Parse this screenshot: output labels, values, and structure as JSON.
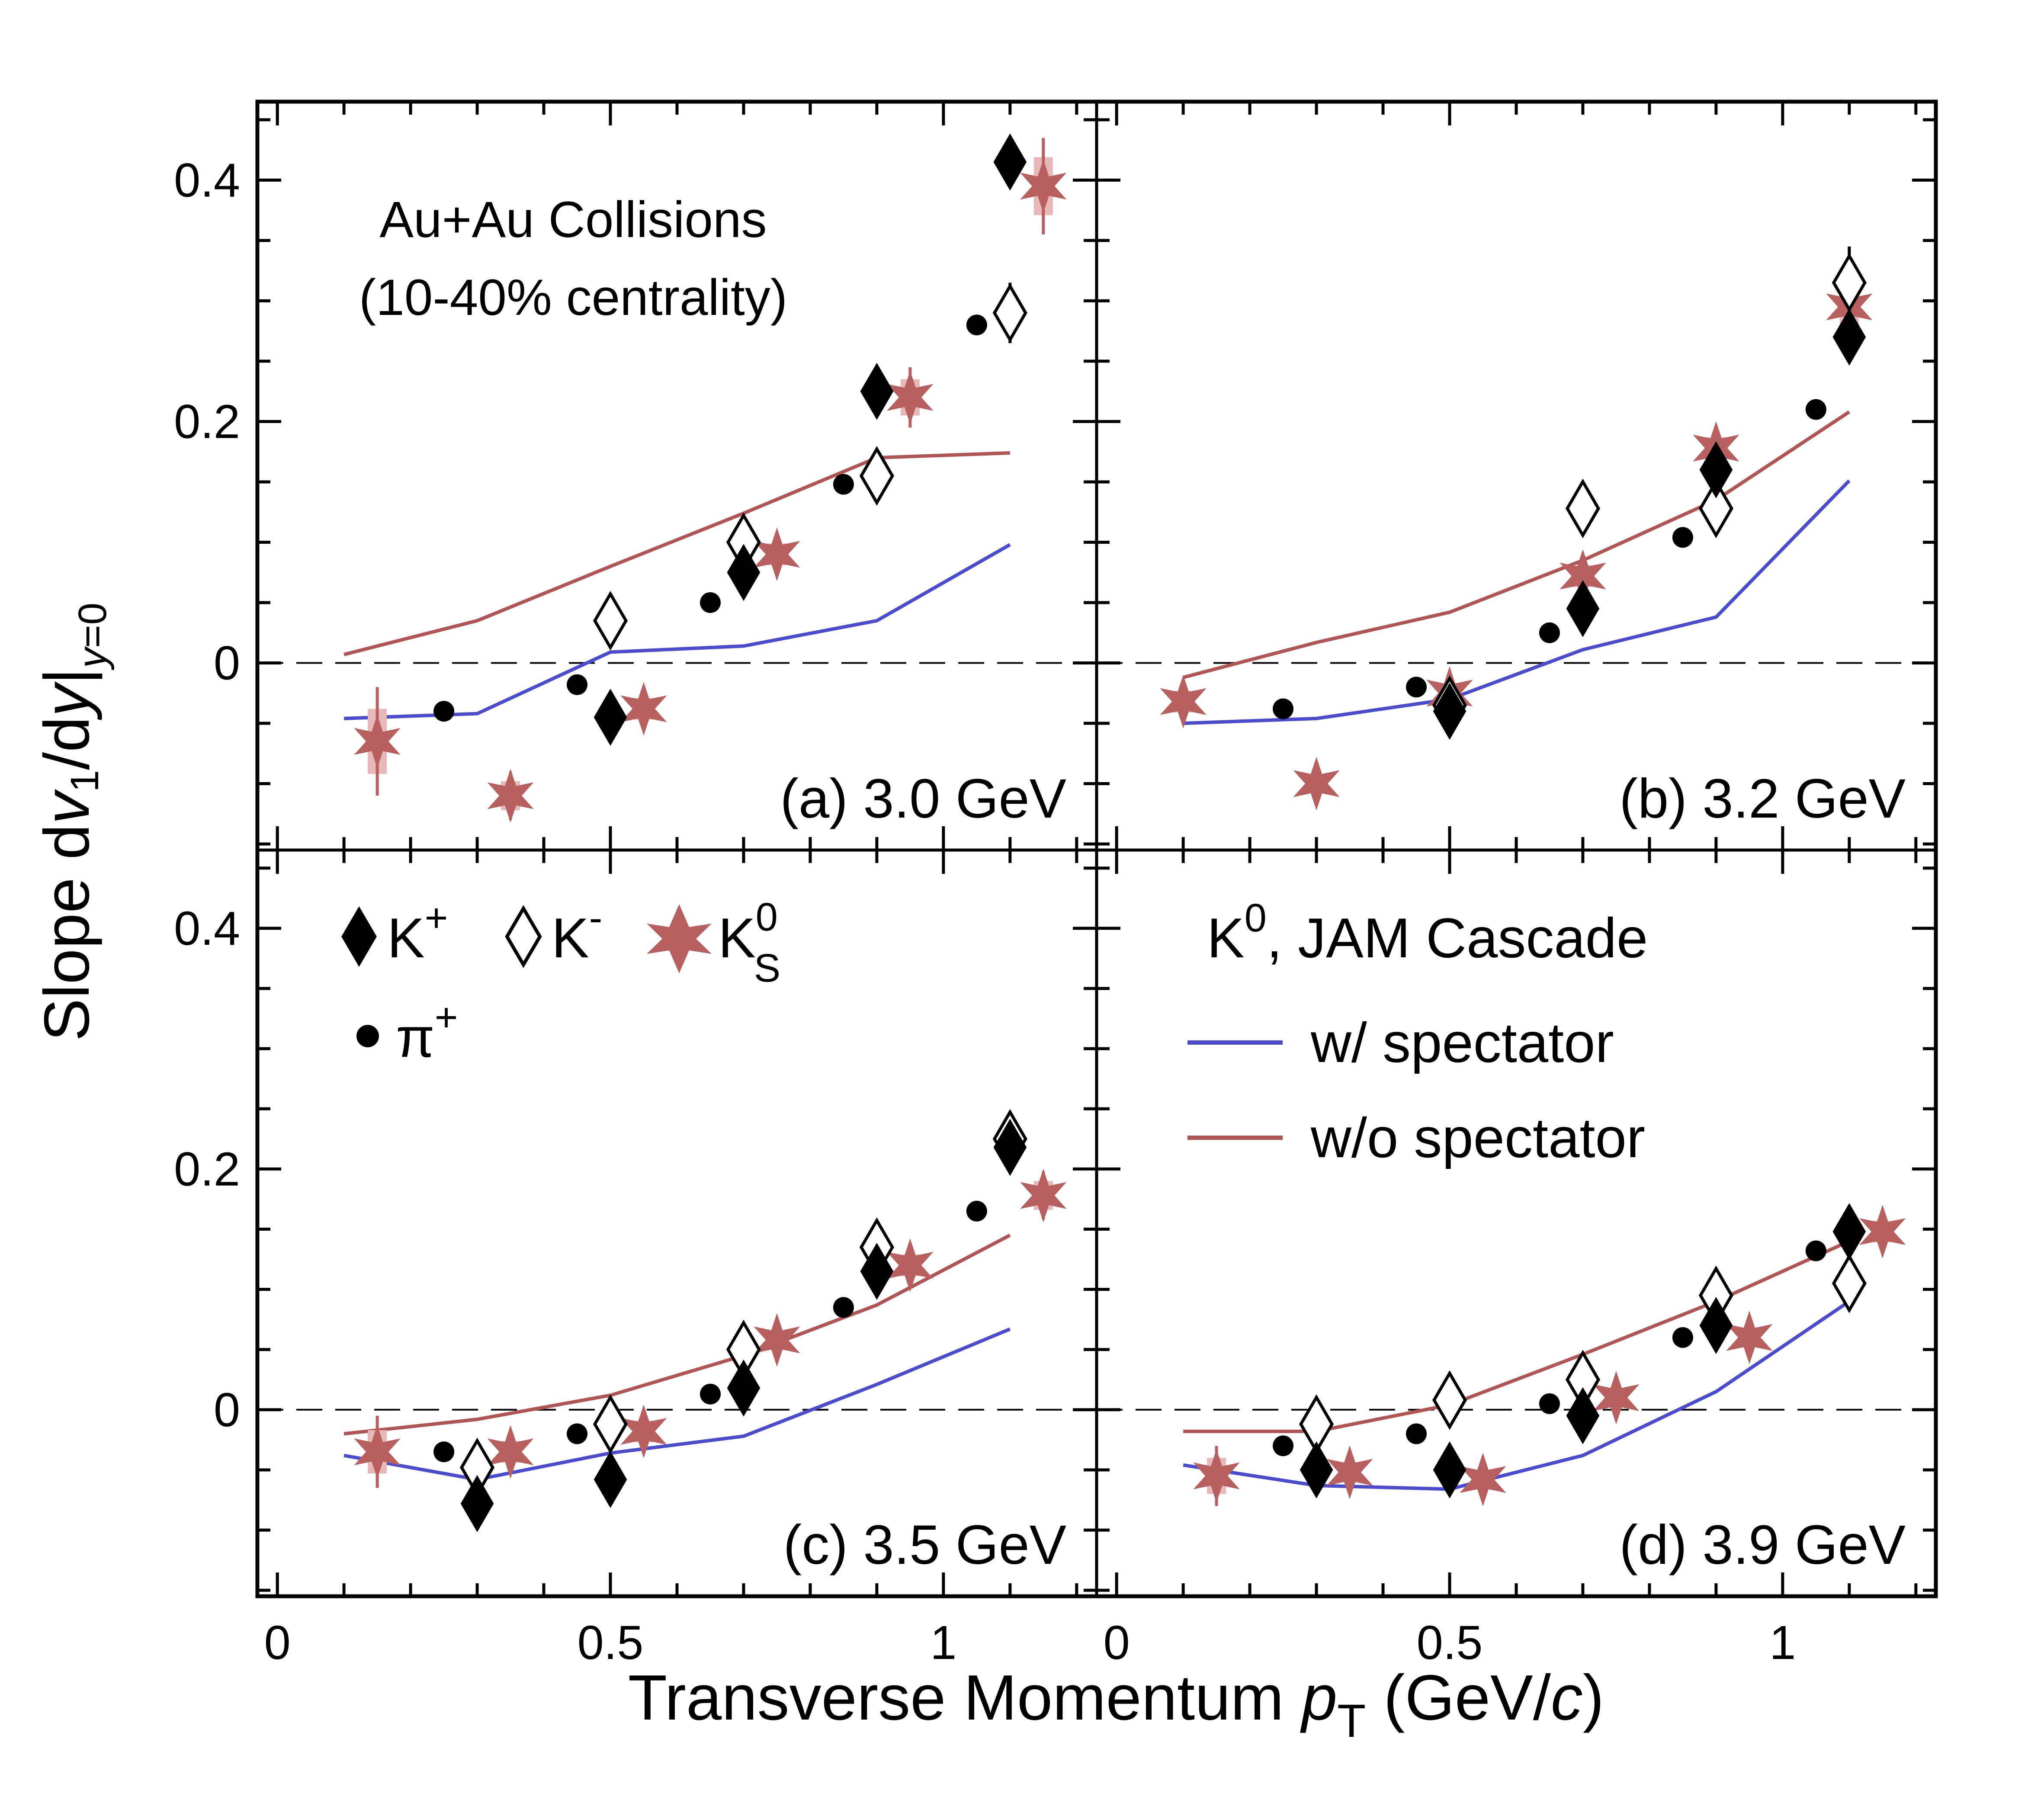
{
  "chart_data": {
    "type": "scatter",
    "ylabel": "Slope dv1/dy|y=0",
    "xlabel": "Transverse Momentum   pT (GeV/c)",
    "xlim": [
      -0.03,
      1.23
    ],
    "ylim": [
      -0.155,
      0.465
    ],
    "x_ticks": [
      {
        "value": 0,
        "label": "0"
      },
      {
        "value": 0.5,
        "label": "0.5"
      },
      {
        "value": 1,
        "label": "1"
      }
    ],
    "y_ticks": [
      {
        "value": 0,
        "label": "0"
      },
      {
        "value": 0.2,
        "label": "0.2"
      },
      {
        "value": 0.4,
        "label": "0.4"
      }
    ],
    "annotation": [
      "Au+Au Collisions",
      "(10-40% centrality)"
    ],
    "legend_particles": {
      "kplus": "K",
      "kplus_sup": "+",
      "kminus": "K",
      "kminus_sup": "-",
      "k0s": "K",
      "k0s_sup": "0",
      "k0s_sub": "S",
      "piplus": "π",
      "piplus_sup": "+"
    },
    "legend_model": {
      "title": "K",
      "title_sup": "0",
      "title_rest": ", JAM Cascade",
      "with_spectator": "w/ spectator",
      "without_spectator": "w/o spectator"
    },
    "colors": {
      "k0s": "#b86060",
      "k0s_sys": "#e8b8b8",
      "with_spectator": "#4b4bd0",
      "without_spectator": "#b05454",
      "sys_gray": "#a8a8a8"
    },
    "panels": [
      {
        "label": "(a) 3.0 GeV",
        "kplus": [
          [
            0.5,
            -0.045,
            0.012
          ],
          [
            0.7,
            0.075,
            0.012
          ],
          [
            0.9,
            0.225,
            0.018
          ],
          [
            1.1,
            0.415,
            0.018
          ]
        ],
        "kminus": [
          [
            0.5,
            0.035,
            0.015
          ],
          [
            0.7,
            0.1,
            0.015
          ],
          [
            0.9,
            0.155,
            0.018
          ],
          [
            1.1,
            0.29,
            0.025
          ]
        ],
        "k0s": [
          [
            0.15,
            -0.065,
            0.045
          ],
          [
            0.35,
            -0.11,
            0.02
          ],
          [
            0.55,
            -0.038,
            0.015
          ],
          [
            0.75,
            0.09,
            0.015
          ],
          [
            0.95,
            0.22,
            0.025
          ],
          [
            1.15,
            0.395,
            0.04
          ]
        ],
        "piplus": [
          [
            0.25,
            -0.04
          ],
          [
            0.45,
            -0.018
          ],
          [
            0.65,
            0.05
          ],
          [
            0.85,
            0.148
          ],
          [
            1.05,
            0.28
          ]
        ],
        "with_spectator": [
          [
            0.1,
            -0.046
          ],
          [
            0.3,
            -0.042
          ],
          [
            0.5,
            0.009
          ],
          [
            0.7,
            0.014
          ],
          [
            0.9,
            0.035
          ],
          [
            1.1,
            0.098
          ]
        ],
        "without_spectator": [
          [
            0.1,
            0.007
          ],
          [
            0.3,
            0.035
          ],
          [
            0.5,
            0.08
          ],
          [
            0.7,
            0.124
          ],
          [
            0.9,
            0.17
          ],
          [
            1.1,
            0.174
          ]
        ]
      },
      {
        "label": "(b) 3.2 GeV",
        "kplus": [
          [
            0.5,
            -0.04,
            0.015
          ],
          [
            0.7,
            0.045,
            0.015
          ],
          [
            0.9,
            0.16,
            0.015
          ],
          [
            1.1,
            0.27,
            0.015
          ]
        ],
        "kminus": [
          [
            0.5,
            -0.035,
            0.012
          ],
          [
            0.7,
            0.128,
            0.015
          ],
          [
            0.9,
            0.128,
            0.012
          ],
          [
            1.1,
            0.315,
            0.03
          ]
        ],
        "k0s": [
          [
            0.1,
            -0.032,
            0.015
          ],
          [
            0.3,
            -0.1,
            0.01
          ],
          [
            0.5,
            -0.025,
            0.01
          ],
          [
            0.7,
            0.072,
            0.015
          ],
          [
            0.9,
            0.178,
            0.015
          ],
          [
            1.1,
            0.295,
            0.025
          ]
        ],
        "piplus": [
          [
            0.25,
            -0.038
          ],
          [
            0.45,
            -0.02
          ],
          [
            0.65,
            0.025
          ],
          [
            0.85,
            0.104
          ],
          [
            1.05,
            0.21
          ]
        ],
        "with_spectator": [
          [
            0.1,
            -0.05
          ],
          [
            0.3,
            -0.046
          ],
          [
            0.5,
            -0.03
          ],
          [
            0.7,
            0.011
          ],
          [
            0.9,
            0.038
          ],
          [
            1.1,
            0.151
          ]
        ],
        "without_spectator": [
          [
            0.1,
            -0.012
          ],
          [
            0.3,
            0.017
          ],
          [
            0.5,
            0.042
          ],
          [
            0.7,
            0.085
          ],
          [
            0.9,
            0.135
          ],
          [
            1.1,
            0.208
          ]
        ]
      },
      {
        "label": "(c) 3.5 GeV",
        "kplus": [
          [
            0.3,
            -0.078,
            0.012
          ],
          [
            0.5,
            -0.058,
            0.012
          ],
          [
            0.7,
            0.018,
            0.012
          ],
          [
            0.9,
            0.115,
            0.015
          ],
          [
            1.1,
            0.218,
            0.015
          ]
        ],
        "kminus": [
          [
            0.3,
            -0.048,
            0.012
          ],
          [
            0.5,
            -0.012,
            0.012
          ],
          [
            0.7,
            0.05,
            0.012
          ],
          [
            0.9,
            0.135,
            0.015
          ],
          [
            1.1,
            0.225,
            0.015
          ]
        ],
        "k0s": [
          [
            0.15,
            -0.035,
            0.03
          ],
          [
            0.35,
            -0.035,
            0.015
          ],
          [
            0.55,
            -0.018,
            0.015
          ],
          [
            0.75,
            0.058,
            0.012
          ],
          [
            0.95,
            0.12,
            0.015
          ],
          [
            1.15,
            0.178,
            0.02
          ]
        ],
        "piplus": [
          [
            0.25,
            -0.035
          ],
          [
            0.45,
            -0.02
          ],
          [
            0.65,
            0.013
          ],
          [
            0.85,
            0.085
          ],
          [
            1.05,
            0.165
          ]
        ],
        "with_spectator": [
          [
            0.1,
            -0.038
          ],
          [
            0.3,
            -0.058
          ],
          [
            0.5,
            -0.036
          ],
          [
            0.7,
            -0.022
          ],
          [
            0.9,
            0.021
          ],
          [
            1.1,
            0.067
          ]
        ],
        "without_spectator": [
          [
            0.1,
            -0.02
          ],
          [
            0.3,
            -0.008
          ],
          [
            0.5,
            0.012
          ],
          [
            0.7,
            0.045
          ],
          [
            0.9,
            0.087
          ],
          [
            1.1,
            0.145
          ]
        ]
      },
      {
        "label": "(d) 3.9 GeV",
        "kplus": [
          [
            0.3,
            -0.05,
            0.012
          ],
          [
            0.5,
            -0.05,
            0.012
          ],
          [
            0.7,
            -0.005,
            0.012
          ],
          [
            0.9,
            0.07,
            0.015
          ],
          [
            1.1,
            0.148,
            0.015
          ]
        ],
        "kminus": [
          [
            0.3,
            -0.012,
            0.015
          ],
          [
            0.5,
            0.008,
            0.015
          ],
          [
            0.7,
            0.025,
            0.015
          ],
          [
            0.9,
            0.095,
            0.015
          ],
          [
            1.1,
            0.105,
            0.015
          ]
        ],
        "k0s": [
          [
            0.15,
            -0.055,
            0.025
          ],
          [
            0.35,
            -0.052,
            0.012
          ],
          [
            0.55,
            -0.058,
            0.012
          ],
          [
            0.75,
            0.01,
            0.012
          ],
          [
            0.95,
            0.06,
            0.012
          ],
          [
            1.15,
            0.148,
            0.015
          ]
        ],
        "piplus": [
          [
            0.25,
            -0.03
          ],
          [
            0.45,
            -0.02
          ],
          [
            0.65,
            0.005
          ],
          [
            0.85,
            0.06
          ],
          [
            1.05,
            0.132
          ]
        ],
        "with_spectator": [
          [
            0.1,
            -0.046
          ],
          [
            0.3,
            -0.063
          ],
          [
            0.5,
            -0.066
          ],
          [
            0.7,
            -0.038
          ],
          [
            0.9,
            0.015
          ],
          [
            1.1,
            0.09
          ]
        ],
        "without_spectator": [
          [
            0.1,
            -0.018
          ],
          [
            0.3,
            -0.018
          ],
          [
            0.5,
            0.004
          ],
          [
            0.7,
            0.046
          ],
          [
            0.9,
            0.09
          ],
          [
            1.1,
            0.14
          ]
        ]
      }
    ]
  }
}
